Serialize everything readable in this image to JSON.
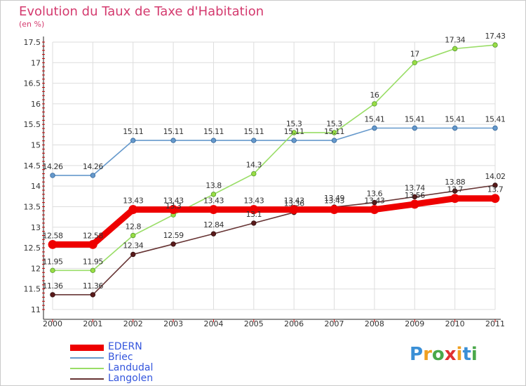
{
  "title": "Evolution du Taux de Taxe d'Habitation",
  "subtitle": "(en %)",
  "logo_text": "Proxiti",
  "colors": {
    "EDERN": "#ee0000",
    "Briec": "#6699cc",
    "Landudal": "#99dd66",
    "Langolen": "#663333",
    "title": "#d43a6e",
    "legend_text": "#3355dd"
  },
  "chart_data": {
    "type": "line",
    "x": [
      "2000",
      "2001",
      "2002",
      "2003",
      "2004",
      "2005",
      "2006",
      "2007",
      "2008",
      "2009",
      "2010",
      "2011"
    ],
    "ylim": [
      11,
      17.5
    ],
    "yticks": [
      11,
      11.5,
      12,
      12.5,
      13,
      13.5,
      14,
      14.5,
      15,
      15.5,
      16,
      16.5,
      17,
      17.5
    ],
    "ytick_labels": [
      "11",
      "11.5",
      "12",
      "12.5",
      "13",
      "13.5",
      "14",
      "14.5",
      "15",
      "15.5",
      "16",
      "16.5",
      "17",
      "17.5"
    ],
    "grid": true,
    "legend_position": "bottom-left",
    "series": [
      {
        "name": "EDERN",
        "values": [
          12.58,
          12.58,
          13.43,
          13.43,
          13.43,
          13.43,
          13.43,
          13.43,
          13.43,
          13.56,
          13.7,
          13.7
        ],
        "labels": [
          "12.58",
          "12.58",
          "13.43",
          "13.43",
          "13.43",
          "13.43",
          "13.43",
          "13.43",
          "13.43",
          "13.56",
          "13.7",
          "13.7"
        ]
      },
      {
        "name": "Briec",
        "values": [
          14.26,
          14.26,
          15.11,
          15.11,
          15.11,
          15.11,
          15.11,
          15.11,
          15.41,
          15.41,
          15.41,
          15.41
        ],
        "labels": [
          "14.26",
          "14.26",
          "15.11",
          "15.11",
          "15.11",
          "15.11",
          "15.11",
          "15.11",
          "15.41",
          "15.41",
          "15.41",
          "15.41"
        ]
      },
      {
        "name": "Landudal",
        "values": [
          11.95,
          11.95,
          12.8,
          13.3,
          13.8,
          14.3,
          15.3,
          15.3,
          16,
          17,
          17.34,
          17.43
        ],
        "labels": [
          "11.95",
          "11.95",
          "12.8",
          "13.3",
          "13.8",
          "14.3",
          "15.3",
          "15.3",
          "16",
          "17",
          "17.34",
          "17.43"
        ]
      },
      {
        "name": "Langolen",
        "values": [
          11.36,
          11.36,
          12.34,
          12.59,
          12.84,
          13.1,
          13.36,
          13.49,
          13.6,
          13.74,
          13.88,
          14.02
        ],
        "labels": [
          "11.36",
          "11.36",
          "12.34",
          "12.59",
          "12.84",
          "13.1",
          "13.36",
          "13.49",
          "13.6",
          "13.74",
          "13.88",
          "14.02"
        ]
      }
    ]
  }
}
